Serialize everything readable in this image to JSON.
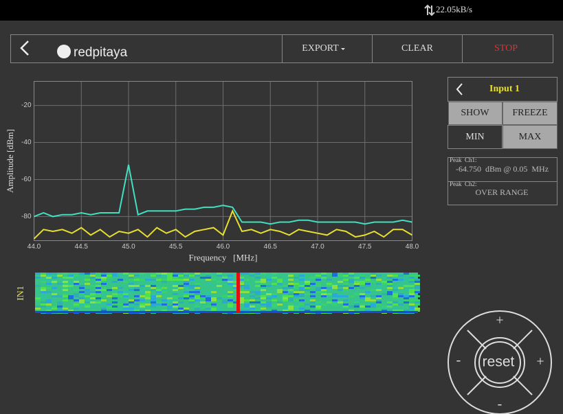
{
  "status_bar": {
    "rate": "22.05kB/s"
  },
  "toolbar": {
    "logo": "redpitaya",
    "export": "EXPORT",
    "clear": "CLEAR",
    "stop": "STOP"
  },
  "chart_data": {
    "type": "line",
    "x_label": "Frequency   [MHz]",
    "y_label": "Amplitude [dBm]",
    "x": [
      44.0,
      44.1,
      44.2,
      44.3,
      44.4,
      44.5,
      44.6,
      44.7,
      44.8,
      44.9,
      45.0,
      45.1,
      45.2,
      45.3,
      45.4,
      45.5,
      45.6,
      45.7,
      45.8,
      45.9,
      46.0,
      46.1,
      46.2,
      46.3,
      46.4,
      46.5,
      46.6,
      46.7,
      46.8,
      46.9,
      47.0,
      47.1,
      47.2,
      47.3,
      47.4,
      47.5,
      47.6,
      47.7,
      47.8,
      47.9,
      48.0
    ],
    "series": [
      {
        "color": "#40e0c0",
        "values": [
          -80,
          -78,
          -80,
          -79,
          -79,
          -78,
          -79,
          -78,
          -78,
          -78,
          -52,
          -79,
          -77,
          -77,
          -77,
          -77,
          -76,
          -76,
          -75,
          -75,
          -74,
          -75,
          -83,
          -83,
          -83,
          -84,
          -83,
          -83,
          -82,
          -82,
          -83,
          -83,
          -83,
          -83,
          -83,
          -84,
          -83,
          -83,
          -83,
          -82,
          -83
        ]
      },
      {
        "color": "#e8e030",
        "values": [
          -92,
          -87,
          -88,
          -87,
          -89,
          -86,
          -90,
          -87,
          -91,
          -88,
          -89,
          -87,
          -91,
          -86,
          -89,
          -87,
          -91,
          -88,
          -87,
          -86,
          -90,
          -77,
          -88,
          -87,
          -89,
          -87,
          -88,
          -90,
          -87,
          -88,
          -89,
          -90,
          -87,
          -88,
          -91,
          -90,
          -88,
          -91,
          -87,
          -87,
          -90
        ]
      }
    ],
    "xlim": [
      44.0,
      48.0
    ],
    "xticks": [
      {
        "value": 44,
        "label": "44.0"
      },
      44.5,
      {
        "value": 45,
        "label": "45.0"
      },
      45.5,
      {
        "value": 46,
        "label": "46.0"
      },
      46.5,
      {
        "value": 47,
        "label": "47.0"
      },
      47.5,
      {
        "value": 48,
        "label": "48.0"
      }
    ],
    "ylim": [
      -93,
      -7
    ],
    "yticks": [
      -20,
      -40,
      -60,
      -80
    ],
    "grid": true
  },
  "waterfall": {
    "label": "IN1"
  },
  "panel": {
    "input": "Input 1",
    "show": "SHOW",
    "freeze": "FREEZE",
    "min": "MIN",
    "max": "MAX",
    "peak_ch1_label": "Peak  Ch1:",
    "peak_ch1_value": "-64.750  dBm @ 0.05  MHz",
    "peak_ch2_label": "Peak  Ch2:",
    "peak_ch2_value": "OVER RANGE"
  },
  "joystick": {
    "up": "+",
    "down": "-",
    "left": "-",
    "right": "+",
    "center": "reset"
  }
}
